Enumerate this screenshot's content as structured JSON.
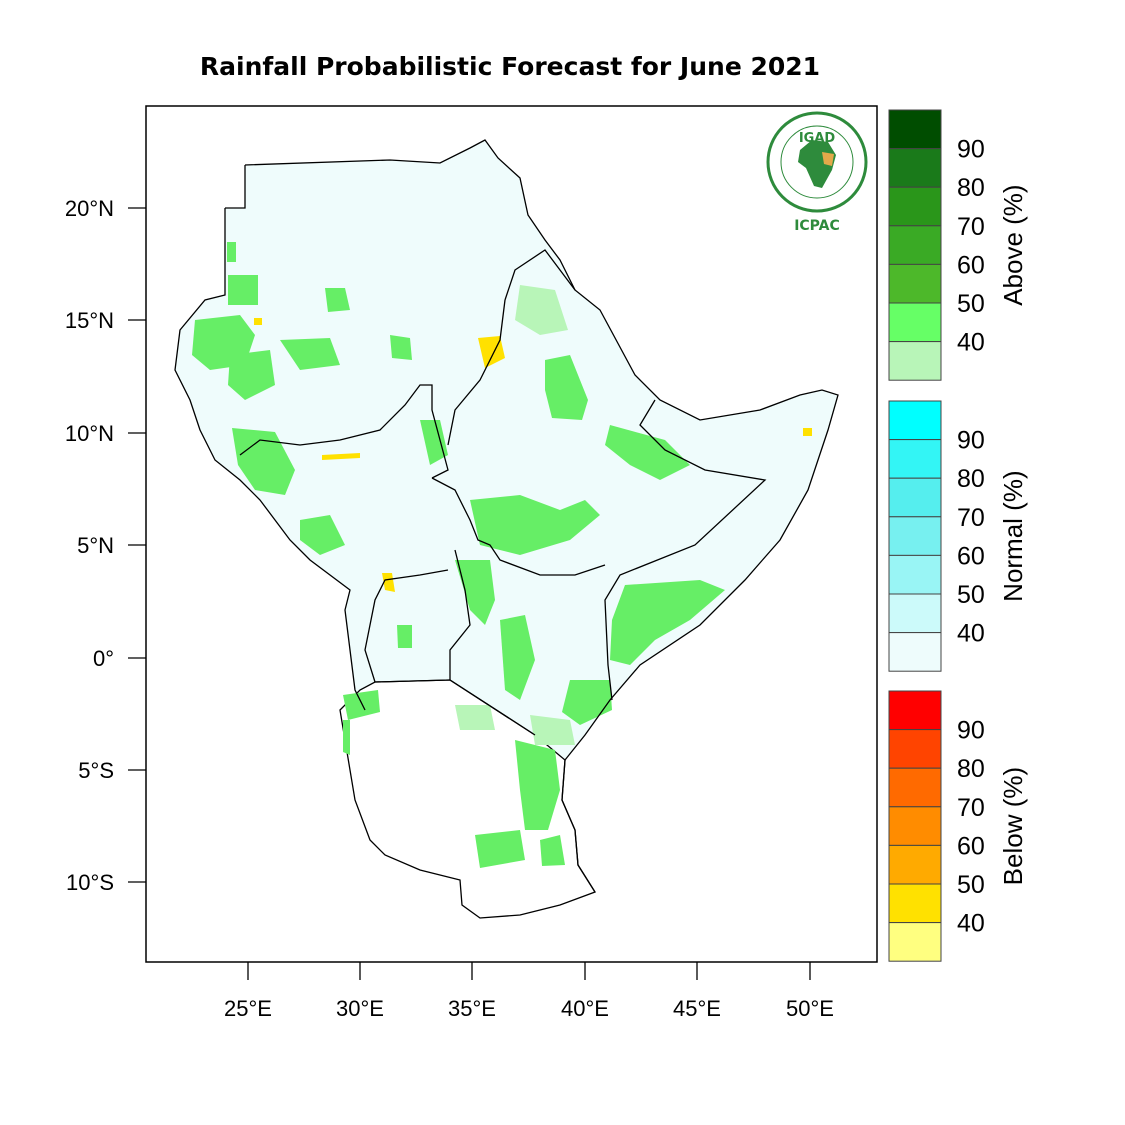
{
  "title": "Rainfall Probabilistic Forecast for June 2021",
  "logo": {
    "top_text": "IGAD",
    "bottom_text": "ICPAC"
  },
  "axes": {
    "lat_labels": [
      "20°N",
      "15°N",
      "10°N",
      "5°N",
      "0°",
      "5°S",
      "10°S"
    ],
    "lat_values": [
      20,
      15,
      10,
      5,
      0,
      -5,
      -10
    ],
    "lon_labels": [
      "25°E",
      "30°E",
      "35°E",
      "40°E",
      "45°E",
      "50°E"
    ],
    "lon_values": [
      25,
      30,
      35,
      40,
      45,
      50
    ],
    "lon_range": [
      21.2,
      53.8
    ],
    "lat_range": [
      -13.5,
      24.5
    ]
  },
  "colorbars": [
    {
      "title": "Above (%)",
      "labels": [
        "90",
        "80",
        "70",
        "60",
        "50",
        "40"
      ],
      "colors": [
        "#004d00",
        "#1a7a1a",
        "#2a961a",
        "#3aaa25",
        "#4db82a",
        "#66ff66",
        "#b8f5b8"
      ]
    },
    {
      "title": "Normal (%)",
      "labels": [
        "90",
        "80",
        "70",
        "60",
        "50",
        "40"
      ],
      "colors": [
        "#00ffff",
        "#33f5f5",
        "#55eeee",
        "#77f0f0",
        "#99f5f5",
        "#ccfafa",
        "#eefcfc"
      ]
    },
    {
      "title": "Below (%)",
      "labels": [
        "90",
        "80",
        "70",
        "60",
        "50",
        "40"
      ],
      "colors": [
        "#ff0000",
        "#ff4400",
        "#ff6a00",
        "#ff8c00",
        "#ffaa00",
        "#ffe100",
        "#ffff80"
      ]
    }
  ],
  "colors": {
    "outline": "#000000",
    "normal_fill": "#effcfc",
    "above_40": "#66ee66",
    "below_40": "#ffe100"
  }
}
